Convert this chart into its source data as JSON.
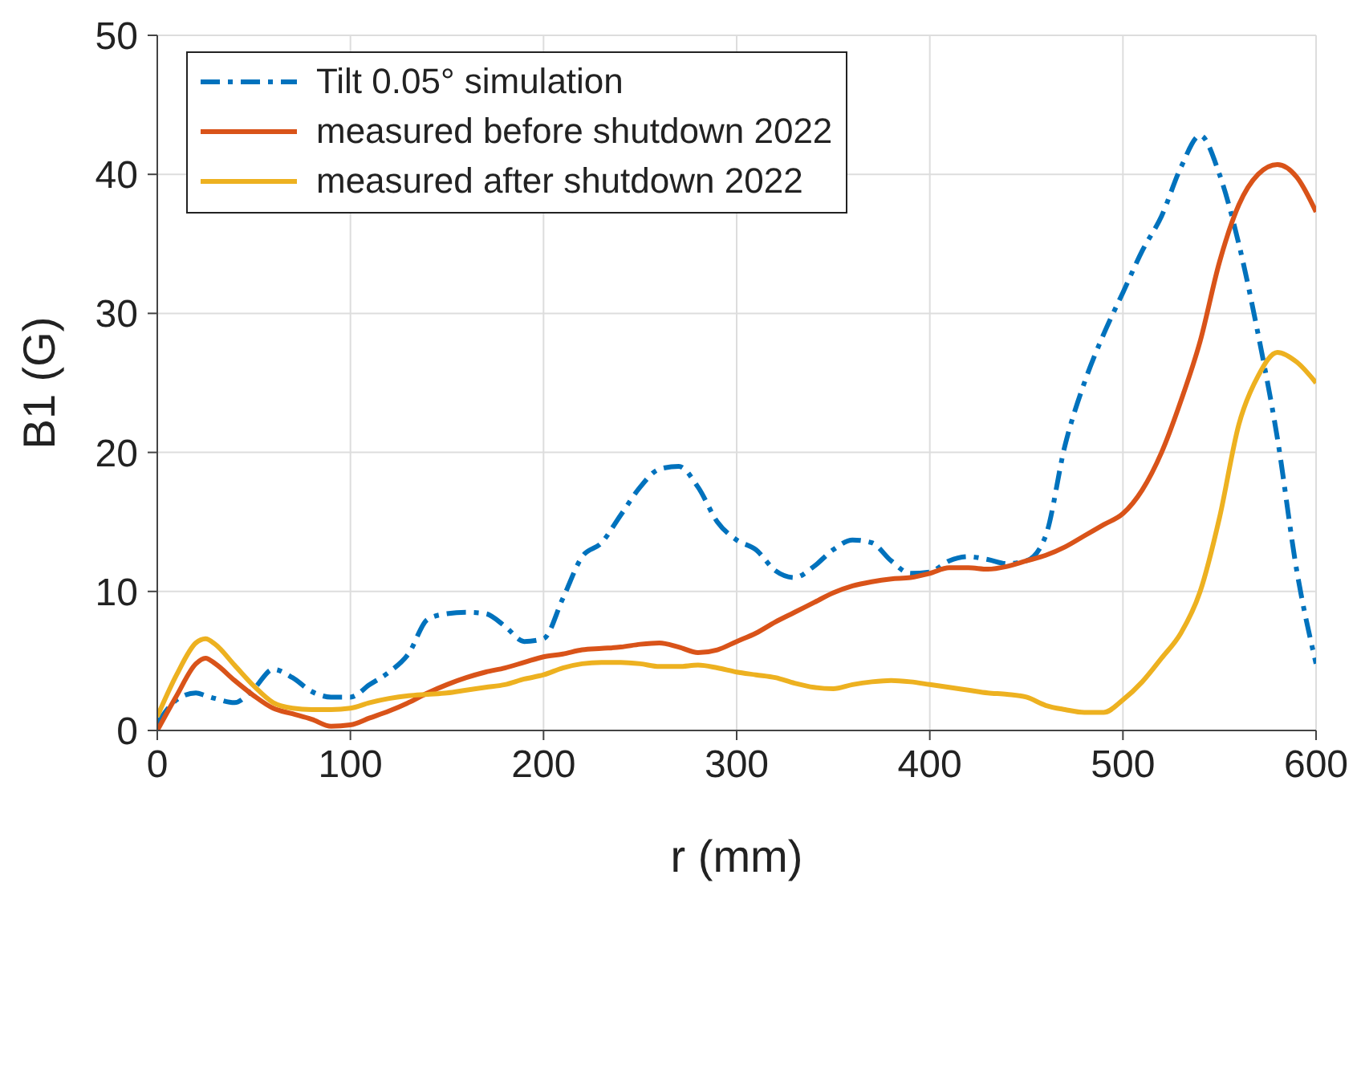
{
  "chart_data": {
    "type": "line",
    "xlabel": "r (mm)",
    "ylabel": "B1 (G)",
    "x": [
      0,
      10,
      20,
      25,
      30,
      40,
      50,
      60,
      70,
      80,
      90,
      100,
      110,
      120,
      130,
      140,
      150,
      160,
      170,
      180,
      190,
      200,
      210,
      220,
      230,
      240,
      250,
      260,
      270,
      280,
      290,
      300,
      310,
      320,
      330,
      340,
      350,
      360,
      370,
      380,
      390,
      400,
      410,
      420,
      430,
      440,
      450,
      460,
      470,
      480,
      490,
      500,
      510,
      520,
      530,
      540,
      550,
      560,
      570,
      580,
      590,
      600
    ],
    "series": [
      {
        "name": "Tilt 0.05° simulation",
        "color": "#0072bd",
        "line_style": "dashdot",
        "values": [
          0.5,
          2.2,
          2.7,
          2.5,
          2.3,
          2.0,
          3.0,
          4.4,
          3.8,
          2.8,
          2.4,
          2.4,
          3.3,
          4.2,
          5.5,
          8.0,
          8.4,
          8.5,
          8.4,
          7.5,
          6.4,
          6.6,
          9.5,
          12.5,
          13.5,
          15.5,
          17.5,
          18.8,
          19.0,
          17.5,
          15.0,
          13.7,
          13.0,
          11.5,
          11.0,
          11.8,
          13.0,
          13.7,
          13.5,
          12.2,
          11.3,
          11.4,
          12.2,
          12.5,
          12.3,
          12.0,
          12.2,
          14,
          20.5,
          25,
          28.5,
          31.5,
          34.5,
          37,
          40.5,
          42.8,
          40,
          35,
          28.5,
          21,
          11.5,
          4.8
        ]
      },
      {
        "name": "measured before shutdown 2022",
        "color": "#d95319",
        "line_style": "solid",
        "values": [
          0,
          2.5,
          4.8,
          5.2,
          4.8,
          3.6,
          2.5,
          1.6,
          1.2,
          0.8,
          0.3,
          0.4,
          0.9,
          1.4,
          2.0,
          2.7,
          3.3,
          3.8,
          4.2,
          4.5,
          4.9,
          5.3,
          5.5,
          5.8,
          5.9,
          6.0,
          6.2,
          6.3,
          6.0,
          5.6,
          5.8,
          6.4,
          7.0,
          7.8,
          8.5,
          9.2,
          9.9,
          10.4,
          10.7,
          10.9,
          11.0,
          11.3,
          11.7,
          11.7,
          11.6,
          11.8,
          12.2,
          12.6,
          13.2,
          14,
          14.8,
          15.6,
          17.3,
          20,
          23.7,
          28,
          33.7,
          37.8,
          40,
          40.7,
          39.8,
          37.3
        ]
      },
      {
        "name": "measured after shutdown 2022",
        "color": "#edb120",
        "line_style": "solid",
        "values": [
          1,
          4,
          6.3,
          6.6,
          6.2,
          4.7,
          3.2,
          2.0,
          1.6,
          1.5,
          1.5,
          1.6,
          2.0,
          2.3,
          2.5,
          2.6,
          2.7,
          2.9,
          3.1,
          3.3,
          3.7,
          4.0,
          4.5,
          4.8,
          4.9,
          4.9,
          4.8,
          4.6,
          4.6,
          4.7,
          4.5,
          4.2,
          4.0,
          3.8,
          3.4,
          3.1,
          3.0,
          3.3,
          3.5,
          3.6,
          3.5,
          3.3,
          3.1,
          2.9,
          2.7,
          2.6,
          2.4,
          1.8,
          1.5,
          1.3,
          1.3,
          2.2,
          3.5,
          5.2,
          7,
          10,
          15.3,
          22,
          25.5,
          27.2,
          26.5,
          25
        ]
      }
    ],
    "xlim": [
      0,
      600
    ],
    "xticks": [
      0,
      100,
      200,
      300,
      400,
      500,
      600
    ],
    "ylim": [
      0,
      50
    ],
    "yticks": [
      0,
      10,
      20,
      30,
      40,
      50
    ],
    "grid": true,
    "legend": "top left",
    "marker": "none"
  }
}
